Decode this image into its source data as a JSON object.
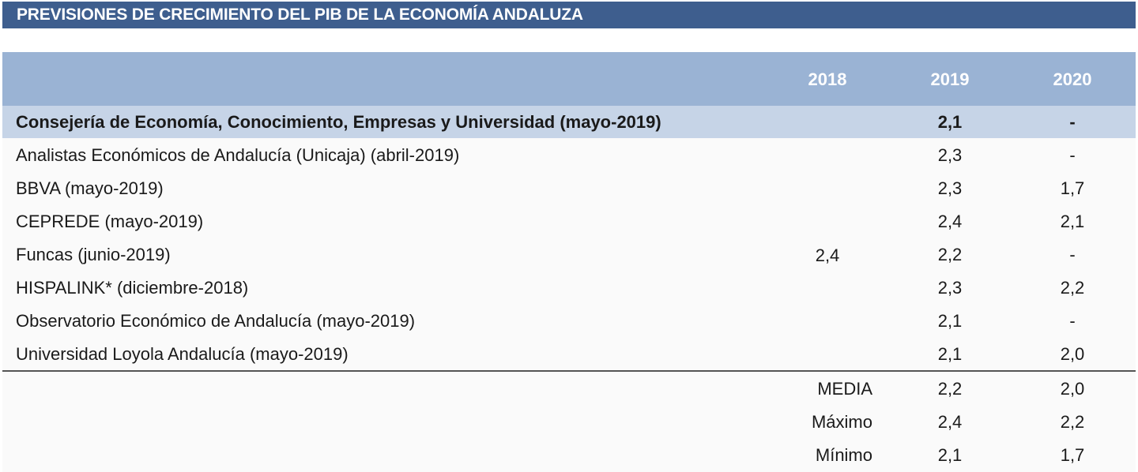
{
  "title": "PREVISIONES DE CRECIMIENTO DEL PIB DE LA ECONOMÍA ANDALUZA",
  "columns": [
    "2018",
    "2019",
    "2020"
  ],
  "value_2018": "2,4",
  "rows": [
    {
      "label": "Consejería de Economía, Conocimiento, Empresas y Universidad (mayo-2019)",
      "v2019": "2,1",
      "v2020": "-"
    },
    {
      "label": "Analistas Económicos de Andalucía (Unicaja) (abril-2019)",
      "v2019": "2,3",
      "v2020": "-"
    },
    {
      "label": "BBVA (mayo-2019)",
      "v2019": "2,3",
      "v2020": "1,7"
    },
    {
      "label": "CEPREDE (mayo-2019)",
      "v2019": "2,4",
      "v2020": "2,1"
    },
    {
      "label": "Funcas (junio-2019)",
      "v2019": "2,2",
      "v2020": "-"
    },
    {
      "label": "HISPALINK* (diciembre-2018)",
      "v2019": "2,3",
      "v2020": "2,2"
    },
    {
      "label": "Observatorio Económico de Andalucía (mayo-2019)",
      "v2019": "2,1",
      "v2020": "-"
    },
    {
      "label": "Universidad Loyola Andalucía (mayo-2019)",
      "v2019": "2,1",
      "v2020": "2,0"
    }
  ],
  "stats": [
    {
      "label": "MEDIA",
      "v2019": "2,2",
      "v2020": "2,0"
    },
    {
      "label": "Máximo",
      "v2019": "2,4",
      "v2020": "2,2"
    },
    {
      "label": "Mínimo",
      "v2019": "2,1",
      "v2020": "1,7"
    }
  ]
}
